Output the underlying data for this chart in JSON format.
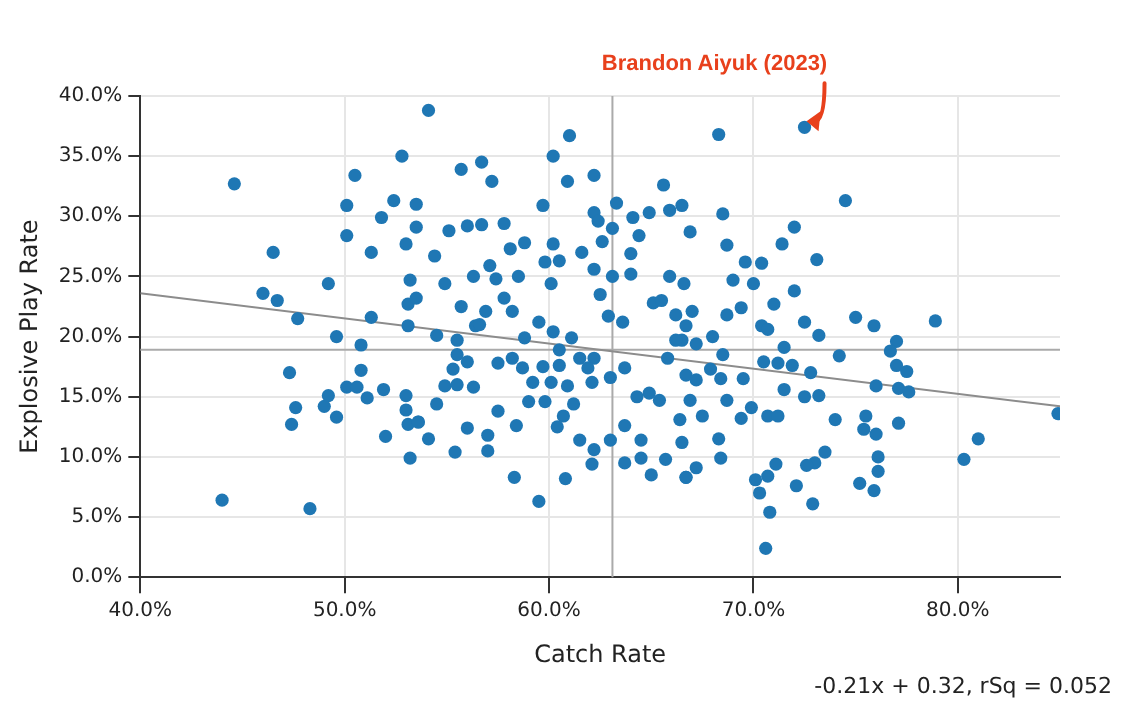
{
  "chart_data": {
    "type": "scatter",
    "xlabel": "Catch Rate",
    "ylabel": "Explosive Play Rate",
    "xlim": [
      40,
      85
    ],
    "xticks": [
      {
        "value": 40,
        "label": "40.0%"
      },
      {
        "value": 50,
        "label": "50.0%"
      },
      {
        "value": 60,
        "label": "60.0%"
      },
      {
        "value": 70,
        "label": "70.0%"
      },
      {
        "value": 80,
        "label": "80.0%"
      }
    ],
    "ylim": [
      0,
      40
    ],
    "yticks": [
      {
        "value": 0,
        "label": "0.0%"
      },
      {
        "value": 5,
        "label": "5.0%"
      },
      {
        "value": 10,
        "label": "10.0%"
      },
      {
        "value": 15,
        "label": "15.0%"
      },
      {
        "value": 20,
        "label": "20.0%"
      },
      {
        "value": 25,
        "label": "25.0%"
      },
      {
        "value": 30,
        "label": "30.0%"
      },
      {
        "value": 35,
        "label": "35.0%"
      },
      {
        "value": 40,
        "label": "40.0%"
      }
    ],
    "grid": true,
    "legend": false,
    "ref_lines": [
      {
        "axis": "x",
        "value": 63.1,
        "color": "#aaaaaa"
      },
      {
        "axis": "y",
        "value": 18.9,
        "color": "#aaaaaa"
      }
    ],
    "annotations": [
      {
        "text": "Brandon Aiyuk (2023)",
        "x": 72.5,
        "y": 37.4
      },
      "-0.21x + 0.32, rSq = 0.052"
    ],
    "series": [
      {
        "type": "scatter",
        "marker": "circle",
        "color": "#1f77b4",
        "x": [
          44.6,
          44.0,
          46.5,
          46.0,
          46.7,
          47.7,
          47.3,
          47.6,
          47.4,
          48.3,
          49.2,
          49.6,
          49.0,
          49.2,
          49.6,
          50.1,
          50.1,
          50.5,
          50.1,
          50.6,
          50.8,
          50.8,
          51.1,
          51.3,
          51.3,
          51.8,
          52.0,
          51.9,
          52.4,
          52.8,
          53.0,
          53.5,
          53.5,
          53.2,
          53.1,
          53.5,
          53.1,
          53.0,
          53.0,
          53.1,
          53.2,
          53.6,
          54.1,
          55.7,
          56.7,
          57.2,
          60.2,
          61.0,
          60.9,
          62.2,
          59.7,
          55.1,
          56.0,
          56.7,
          57.8,
          54.4,
          54.9,
          55.7,
          56.3,
          57.1,
          57.4,
          58.1,
          58.8,
          58.5,
          59.8,
          60.5,
          60.1,
          60.2,
          61.6,
          62.2,
          62.4,
          63.1,
          62.6,
          63.3,
          64.1,
          64.9,
          65.6,
          65.9,
          66.5,
          66.9,
          64.4,
          64.0,
          63.1,
          62.2,
          62.5,
          62.9,
          63.6,
          64.0,
          65.1,
          65.5,
          65.9,
          66.6,
          67.0,
          66.2,
          57.8,
          58.2,
          56.9,
          56.4,
          54.5,
          55.5,
          56.6,
          58.8,
          59.5,
          60.2,
          60.5,
          61.1,
          61.5,
          62.2,
          61.9,
          55.5,
          56.0,
          55.3,
          54.9,
          55.5,
          56.3,
          57.5,
          58.2,
          58.7,
          59.2,
          59.7,
          60.5,
          60.1,
          60.9,
          61.2,
          62.1,
          63.0,
          63.7,
          64.3,
          64.9,
          65.4,
          65.8,
          66.5,
          66.7,
          66.9,
          54.5,
          53.6,
          54.1,
          56.0,
          57.0,
          57.5,
          58.4,
          59.0,
          59.8,
          60.7,
          61.5,
          62.2,
          62.1,
          63.0,
          63.7,
          64.5,
          64.5,
          65.0,
          65.7,
          66.5,
          55.4,
          57.0,
          58.3,
          59.5,
          60.8,
          60.4,
          66.7,
          63.7,
          68.3,
          72.5,
          68.5,
          74.5,
          72.0,
          71.4,
          68.7,
          69.6,
          70.4,
          70.0,
          69.0,
          73.1,
          72.0,
          71.0,
          69.4,
          68.7,
          68.0,
          66.7,
          67.2,
          66.2,
          70.4,
          70.7,
          72.5,
          73.2,
          75.0,
          75.9,
          78.9,
          77.0,
          76.7,
          74.2,
          71.5,
          70.5,
          71.2,
          71.9,
          72.8,
          68.5,
          67.9,
          67.2,
          68.4,
          69.5,
          77.0,
          77.5,
          76.0,
          77.1,
          77.6,
          73.2,
          72.5,
          71.5,
          69.9,
          69.4,
          68.7,
          67.5,
          66.4,
          70.7,
          71.2,
          74.0,
          75.5,
          75.4,
          76.0,
          77.1,
          76.1,
          76.1,
          75.2,
          75.9,
          73.5,
          73.0,
          72.6,
          72.1,
          72.9,
          71.1,
          70.7,
          70.1,
          70.3,
          70.8,
          70.6,
          68.3,
          68.4,
          67.2,
          66.7,
          84.9,
          81.0,
          80.3
        ],
        "values": [
          32.7,
          6.4,
          27.0,
          23.6,
          23.0,
          21.5,
          17.0,
          14.1,
          12.7,
          5.7,
          24.4,
          20.0,
          14.2,
          15.1,
          13.3,
          30.9,
          28.4,
          33.4,
          15.8,
          15.8,
          17.2,
          19.3,
          14.9,
          27.0,
          21.6,
          29.9,
          11.7,
          15.6,
          31.3,
          35.0,
          27.7,
          31.0,
          29.1,
          24.7,
          22.7,
          23.2,
          20.9,
          15.1,
          13.9,
          12.7,
          9.9,
          12.9,
          38.8,
          33.9,
          34.5,
          32.9,
          35.0,
          36.7,
          32.9,
          33.4,
          30.9,
          28.8,
          29.2,
          29.3,
          29.4,
          26.7,
          24.4,
          22.5,
          25.0,
          25.9,
          24.8,
          27.3,
          27.8,
          25.0,
          26.2,
          26.3,
          24.4,
          27.7,
          27.0,
          30.3,
          29.6,
          29.0,
          27.9,
          31.1,
          29.9,
          30.3,
          32.6,
          30.5,
          30.9,
          28.7,
          28.4,
          26.9,
          25.0,
          25.6,
          23.5,
          21.7,
          21.2,
          25.2,
          22.8,
          23.0,
          25.0,
          24.4,
          22.1,
          21.8,
          23.2,
          22.1,
          22.1,
          20.9,
          20.1,
          19.7,
          21.0,
          19.9,
          21.2,
          20.4,
          18.9,
          19.9,
          18.2,
          18.2,
          17.4,
          18.5,
          17.9,
          17.3,
          15.9,
          16.0,
          15.8,
          17.8,
          18.2,
          17.4,
          16.2,
          17.5,
          17.6,
          16.2,
          15.9,
          14.4,
          16.2,
          16.6,
          17.4,
          15.0,
          15.3,
          14.7,
          18.2,
          19.7,
          16.8,
          14.7,
          14.4,
          12.9,
          11.5,
          12.4,
          11.8,
          13.8,
          12.6,
          14.6,
          14.6,
          13.4,
          11.4,
          10.6,
          9.4,
          11.4,
          12.6,
          11.4,
          9.9,
          8.5,
          9.8,
          11.2,
          10.4,
          10.5,
          8.3,
          6.3,
          8.2,
          12.5,
          8.3,
          9.5,
          36.8,
          37.4,
          30.2,
          31.3,
          29.1,
          27.7,
          27.6,
          26.2,
          26.1,
          24.4,
          24.7,
          26.4,
          23.8,
          22.7,
          22.4,
          21.8,
          20.0,
          20.9,
          19.4,
          19.7,
          20.9,
          20.6,
          21.2,
          20.1,
          21.6,
          20.9,
          21.3,
          19.6,
          18.8,
          18.4,
          19.1,
          17.9,
          17.8,
          17.6,
          17.0,
          18.5,
          17.3,
          16.4,
          16.5,
          16.5,
          17.6,
          17.1,
          15.9,
          15.7,
          15.4,
          15.1,
          15.0,
          15.6,
          14.1,
          13.2,
          14.7,
          13.4,
          13.1,
          13.4,
          13.4,
          13.1,
          13.4,
          12.3,
          11.9,
          12.8,
          10.0,
          8.8,
          7.8,
          7.2,
          10.4,
          9.5,
          9.3,
          7.6,
          6.1,
          9.4,
          8.4,
          8.1,
          7.0,
          5.4,
          2.4,
          11.5,
          9.9,
          9.1,
          8.3,
          13.6,
          11.5,
          9.8
        ]
      },
      {
        "type": "line",
        "color": "#8c8c8c",
        "x": [
          40,
          85
        ],
        "values": [
          23.6,
          14.2
        ]
      }
    ]
  }
}
